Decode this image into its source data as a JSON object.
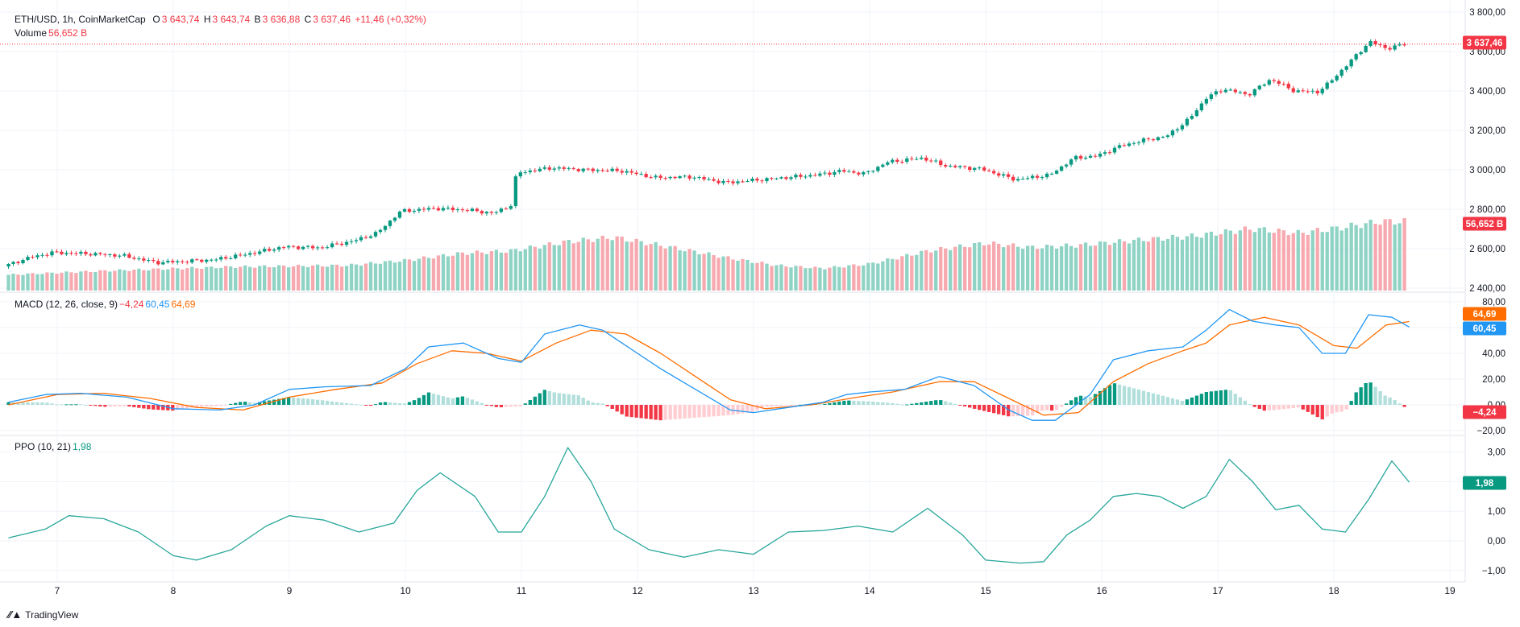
{
  "header": {
    "symbol": "ETH/USD, 1h, CoinMarketCap",
    "o_label": "O",
    "o_value": "3 643,74",
    "h_label": "H",
    "h_value": "3 643,74",
    "l_label": "B",
    "l_value": "3 636,88",
    "c_label": "C",
    "c_value": "3 637,46",
    "change": "+11,46 (+0,32%)",
    "volume_label": "Volume",
    "volume_value": "56,652 B"
  },
  "macd_legend": {
    "label": "MACD (12, 26, close, 9)",
    "hist": "−4,24",
    "macd": "60,45",
    "signal": "64,69"
  },
  "ppo_legend": {
    "label": "PPO (10, 21)",
    "value": "1,98"
  },
  "badges": {
    "price": "3 637,46",
    "volume": "56,652 B",
    "signal": "64,69",
    "macd": "60,45",
    "hist": "−4,24",
    "ppo": "1,98"
  },
  "brand": {
    "name": "TradingView"
  },
  "colors": {
    "up": "#089981",
    "down": "#f23645",
    "vol_up": "#8fd3c4",
    "vol_down": "#f7a9b0",
    "macd": "#2196f3",
    "signal": "#ff6d00",
    "ppo": "#26a69a"
  },
  "chart_data": [
    {
      "type": "candlestick",
      "x_ticks": [
        "7",
        "8",
        "9",
        "10",
        "11",
        "12",
        "13",
        "14",
        "15",
        "16",
        "17",
        "18",
        "19"
      ],
      "y_ticks": [
        "3 800,00",
        "3 600,00",
        "3 400,00",
        "3 200,00",
        "3 000,00",
        "2 800,00",
        "2 600,00",
        "2 400,00"
      ],
      "ylim": [
        2400,
        3800
      ],
      "last_price": 3637.46,
      "price_path": [
        [
          6.58,
          2510
        ],
        [
          6.8,
          2555
        ],
        [
          7.0,
          2580
        ],
        [
          7.3,
          2575
        ],
        [
          7.6,
          2565
        ],
        [
          7.9,
          2530
        ],
        [
          8.1,
          2535
        ],
        [
          8.4,
          2545
        ],
        [
          8.7,
          2575
        ],
        [
          9.0,
          2610
        ],
        [
          9.3,
          2605
        ],
        [
          9.6,
          2640
        ],
        [
          9.8,
          2680
        ],
        [
          10.0,
          2790
        ],
        [
          10.3,
          2805
        ],
        [
          10.6,
          2795
        ],
        [
          10.8,
          2780
        ],
        [
          10.95,
          2820
        ],
        [
          11.0,
          2985
        ],
        [
          11.3,
          3010
        ],
        [
          11.6,
          3000
        ],
        [
          11.9,
          2995
        ],
        [
          12.2,
          2960
        ],
        [
          12.5,
          2965
        ],
        [
          12.8,
          2935
        ],
        [
          13.0,
          2945
        ],
        [
          13.3,
          2960
        ],
        [
          13.6,
          2975
        ],
        [
          13.8,
          2995
        ],
        [
          14.0,
          2980
        ],
        [
          14.2,
          3040
        ],
        [
          14.5,
          3060
        ],
        [
          14.7,
          3020
        ],
        [
          15.0,
          3005
        ],
        [
          15.3,
          2950
        ],
        [
          15.6,
          2975
        ],
        [
          15.8,
          3060
        ],
        [
          16.0,
          3070
        ],
        [
          16.2,
          3120
        ],
        [
          16.4,
          3150
        ],
        [
          16.6,
          3170
        ],
        [
          16.8,
          3260
        ],
        [
          16.95,
          3370
        ],
        [
          17.1,
          3410
        ],
        [
          17.3,
          3380
        ],
        [
          17.5,
          3460
        ],
        [
          17.7,
          3400
        ],
        [
          17.9,
          3395
        ],
        [
          18.0,
          3440
        ],
        [
          18.2,
          3560
        ],
        [
          18.35,
          3650
        ],
        [
          18.5,
          3615
        ],
        [
          18.65,
          3637
        ]
      ],
      "volume_path": [
        [
          6.58,
          0.22
        ],
        [
          7.5,
          0.28
        ],
        [
          8.5,
          0.33
        ],
        [
          9.5,
          0.35
        ],
        [
          10.0,
          0.42
        ],
        [
          10.5,
          0.52
        ],
        [
          10.9,
          0.55
        ],
        [
          11.4,
          0.68
        ],
        [
          11.8,
          0.74
        ],
        [
          12.3,
          0.6
        ],
        [
          12.8,
          0.45
        ],
        [
          13.2,
          0.35
        ],
        [
          13.6,
          0.31
        ],
        [
          14.0,
          0.37
        ],
        [
          14.5,
          0.55
        ],
        [
          15.0,
          0.66
        ],
        [
          15.4,
          0.6
        ],
        [
          15.8,
          0.63
        ],
        [
          16.3,
          0.7
        ],
        [
          16.8,
          0.76
        ],
        [
          17.3,
          0.86
        ],
        [
          17.7,
          0.8
        ],
        [
          18.0,
          0.86
        ],
        [
          18.4,
          0.96
        ],
        [
          18.65,
          0.96
        ]
      ]
    },
    {
      "type": "line",
      "title": "MACD (12, 26, close, 9)",
      "y_ticks": [
        "80,00",
        "60,00",
        "40,00",
        "20,00",
        "0,00",
        "−20,00"
      ],
      "ylim": [
        -20,
        80
      ],
      "series": [
        {
          "name": "MACD",
          "values": [
            [
              6.58,
              2
            ],
            [
              6.9,
              8
            ],
            [
              7.2,
              9
            ],
            [
              7.6,
              6
            ],
            [
              8.0,
              -3
            ],
            [
              8.4,
              -4
            ],
            [
              8.7,
              0
            ],
            [
              9.0,
              12
            ],
            [
              9.3,
              14
            ],
            [
              9.7,
              15
            ],
            [
              10.0,
              28
            ],
            [
              10.2,
              45
            ],
            [
              10.5,
              48
            ],
            [
              10.8,
              36
            ],
            [
              11.0,
              33
            ],
            [
              11.2,
              55
            ],
            [
              11.5,
              62
            ],
            [
              11.7,
              58
            ],
            [
              12.0,
              40
            ],
            [
              12.2,
              28
            ],
            [
              12.5,
              12
            ],
            [
              12.8,
              -4
            ],
            [
              13.0,
              -6
            ],
            [
              13.3,
              -2
            ],
            [
              13.6,
              2
            ],
            [
              13.8,
              8
            ],
            [
              14.0,
              10
            ],
            [
              14.3,
              12
            ],
            [
              14.6,
              22
            ],
            [
              14.9,
              15
            ],
            [
              15.2,
              -4
            ],
            [
              15.4,
              -12
            ],
            [
              15.6,
              -12
            ],
            [
              15.9,
              8
            ],
            [
              16.1,
              35
            ],
            [
              16.4,
              42
            ],
            [
              16.7,
              45
            ],
            [
              16.9,
              58
            ],
            [
              17.1,
              74
            ],
            [
              17.3,
              65
            ],
            [
              17.5,
              62
            ],
            [
              17.7,
              60
            ],
            [
              17.9,
              40
            ],
            [
              18.1,
              40
            ],
            [
              18.3,
              70
            ],
            [
              18.5,
              68
            ],
            [
              18.65,
              60.45
            ]
          ]
        },
        {
          "name": "Signal",
          "values": [
            [
              6.58,
              0
            ],
            [
              7.0,
              8
            ],
            [
              7.4,
              9
            ],
            [
              7.8,
              5
            ],
            [
              8.2,
              -2
            ],
            [
              8.6,
              -4
            ],
            [
              9.0,
              6
            ],
            [
              9.4,
              12
            ],
            [
              9.8,
              17
            ],
            [
              10.1,
              32
            ],
            [
              10.4,
              42
            ],
            [
              10.7,
              40
            ],
            [
              11.0,
              34
            ],
            [
              11.3,
              48
            ],
            [
              11.6,
              58
            ],
            [
              11.9,
              55
            ],
            [
              12.2,
              40
            ],
            [
              12.5,
              22
            ],
            [
              12.8,
              4
            ],
            [
              13.1,
              -3
            ],
            [
              13.5,
              0
            ],
            [
              13.9,
              6
            ],
            [
              14.2,
              10
            ],
            [
              14.6,
              18
            ],
            [
              14.9,
              18
            ],
            [
              15.2,
              5
            ],
            [
              15.5,
              -8
            ],
            [
              15.8,
              -6
            ],
            [
              16.1,
              18
            ],
            [
              16.4,
              32
            ],
            [
              16.7,
              42
            ],
            [
              16.9,
              48
            ],
            [
              17.1,
              62
            ],
            [
              17.4,
              68
            ],
            [
              17.7,
              62
            ],
            [
              18.0,
              46
            ],
            [
              18.2,
              44
            ],
            [
              18.45,
              62
            ],
            [
              18.65,
              64.69
            ]
          ]
        }
      ]
    },
    {
      "type": "line",
      "title": "PPO (10, 21)",
      "y_ticks": [
        "3,00",
        "2,00",
        "1,00",
        "0,00",
        "−1,00"
      ],
      "ylim": [
        -1.3,
        3.3
      ],
      "series": [
        {
          "name": "PPO",
          "values": [
            [
              6.58,
              0.1
            ],
            [
              6.9,
              0.4
            ],
            [
              7.1,
              0.85
            ],
            [
              7.4,
              0.75
            ],
            [
              7.7,
              0.3
            ],
            [
              8.0,
              -0.5
            ],
            [
              8.2,
              -0.65
            ],
            [
              8.5,
              -0.3
            ],
            [
              8.8,
              0.5
            ],
            [
              9.0,
              0.85
            ],
            [
              9.3,
              0.7
            ],
            [
              9.6,
              0.3
            ],
            [
              9.9,
              0.6
            ],
            [
              10.1,
              1.7
            ],
            [
              10.3,
              2.3
            ],
            [
              10.6,
              1.5
            ],
            [
              10.8,
              0.3
            ],
            [
              11.0,
              0.3
            ],
            [
              11.2,
              1.5
            ],
            [
              11.4,
              3.15
            ],
            [
              11.6,
              2.0
            ],
            [
              11.8,
              0.4
            ],
            [
              12.1,
              -0.3
            ],
            [
              12.4,
              -0.55
            ],
            [
              12.7,
              -0.3
            ],
            [
              13.0,
              -0.45
            ],
            [
              13.3,
              0.3
            ],
            [
              13.6,
              0.35
            ],
            [
              13.9,
              0.5
            ],
            [
              14.2,
              0.3
            ],
            [
              14.5,
              1.1
            ],
            [
              14.8,
              0.2
            ],
            [
              15.0,
              -0.65
            ],
            [
              15.3,
              -0.75
            ],
            [
              15.5,
              -0.7
            ],
            [
              15.7,
              0.2
            ],
            [
              15.9,
              0.7
            ],
            [
              16.1,
              1.5
            ],
            [
              16.3,
              1.6
            ],
            [
              16.5,
              1.5
            ],
            [
              16.7,
              1.1
            ],
            [
              16.9,
              1.5
            ],
            [
              17.1,
              2.75
            ],
            [
              17.3,
              2.0
            ],
            [
              17.5,
              1.05
            ],
            [
              17.7,
              1.2
            ],
            [
              17.9,
              0.4
            ],
            [
              18.1,
              0.3
            ],
            [
              18.3,
              1.4
            ],
            [
              18.5,
              2.7
            ],
            [
              18.65,
              1.98
            ]
          ]
        }
      ]
    }
  ]
}
